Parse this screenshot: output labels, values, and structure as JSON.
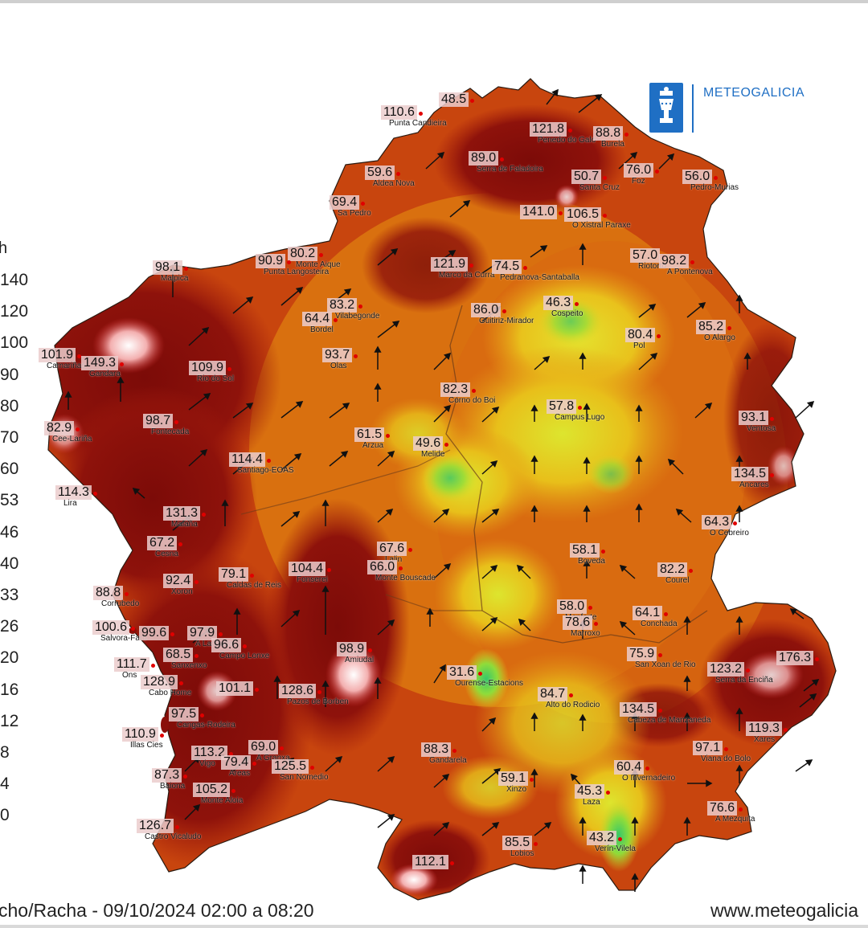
{
  "brand": {
    "name": "METEOGALICIA"
  },
  "legend": {
    "unit": "h",
    "ticks": [
      "140",
      "120",
      "100",
      "90",
      "80",
      "70",
      "60",
      "53",
      "46",
      "40",
      "33",
      "26",
      "20",
      "16",
      "12",
      "8",
      "4",
      "0"
    ]
  },
  "footer": {
    "caption": "cho/Racha - 09/10/2024 02:00 a 08:20",
    "website": "www.meteogalicia"
  },
  "colors": {
    "dark_red": "#8a0f0a",
    "red": "#b8250c",
    "orange": "#d9670f",
    "yellow": "#e9b618",
    "light_yellow": "#dedd2a",
    "green": "#5fd06a",
    "brand_blue": "#1f6fc4"
  },
  "stations": [
    {
      "value": "48.5",
      "name": ""
    },
    {
      "value": "110.6",
      "name": "Punta Candieira"
    },
    {
      "value": "121.8",
      "name": "Penedo do Galo"
    },
    {
      "value": "88.8",
      "name": "Burela"
    },
    {
      "value": "89.0",
      "name": "Serra de Faladoira"
    },
    {
      "value": "59.6",
      "name": "Aldea Nova"
    },
    {
      "value": "50.7",
      "name": "Santa Cruz"
    },
    {
      "value": "76.0",
      "name": "Foz"
    },
    {
      "value": "56.0",
      "name": "Pedro-Murias"
    },
    {
      "value": "69.4",
      "name": "Sa Pedro"
    },
    {
      "value": "141.0",
      "name": ""
    },
    {
      "value": "106.5",
      "name": "O Xistral Paraxe"
    },
    {
      "value": "80.2",
      "name": "Monte Aique"
    },
    {
      "value": "90.9",
      "name": "Punta Langosteira"
    },
    {
      "value": "98.1",
      "name": "Malpica"
    },
    {
      "value": "121.9",
      "name": "Marco da Curra"
    },
    {
      "value": "74.5",
      "name": "Pedranova-Santaballa"
    },
    {
      "value": "57.0",
      "name": "Riotorto"
    },
    {
      "value": "98.2",
      "name": "A Pontenova"
    },
    {
      "value": "83.2",
      "name": "Vilabegonde"
    },
    {
      "value": "64.4",
      "name": "Bordel"
    },
    {
      "value": "86.0",
      "name": "Guitiriz-Mirador"
    },
    {
      "value": "46.3",
      "name": "Cospeito"
    },
    {
      "value": "85.2",
      "name": "O Alargo"
    },
    {
      "value": "101.9",
      "name": "Camariñas"
    },
    {
      "value": "149.3",
      "name": "Gandara"
    },
    {
      "value": "109.9",
      "name": "Rio do Sol"
    },
    {
      "value": "93.7",
      "name": "Olas"
    },
    {
      "value": "80.4",
      "name": "Pol"
    },
    {
      "value": "82.3",
      "name": "Corno do Boi"
    },
    {
      "value": "57.8",
      "name": "Campus Lugo"
    },
    {
      "value": "98.7",
      "name": "Fontecada"
    },
    {
      "value": "82.9",
      "name": "Cee-Lariña"
    },
    {
      "value": "61.5",
      "name": "Arzua"
    },
    {
      "value": "49.6",
      "name": "Melide"
    },
    {
      "value": "93.1",
      "name": "Ventosa"
    },
    {
      "value": "114.4",
      "name": "Santiago-EOAS"
    },
    {
      "value": "134.5",
      "name": "Ancares"
    },
    {
      "value": "114.3",
      "name": "Lira"
    },
    {
      "value": "131.3",
      "name": "Malaña"
    },
    {
      "value": "64.3",
      "name": "O Cebreiro"
    },
    {
      "value": "67.2",
      "name": "Cesna"
    },
    {
      "value": "67.6",
      "name": "Lalin"
    },
    {
      "value": "58.1",
      "name": "Boveda"
    },
    {
      "value": "104.4",
      "name": "Fonserei"
    },
    {
      "value": "66.0",
      "name": "Monte Bouscade"
    },
    {
      "value": "79.1",
      "name": "Caldas de Reis"
    },
    {
      "value": "82.2",
      "name": "Courel"
    },
    {
      "value": "92.4",
      "name": "Xoron"
    },
    {
      "value": "88.8",
      "name": "Corrubedo"
    },
    {
      "value": "58.0",
      "name": "Monforte"
    },
    {
      "value": "78.6",
      "name": "Marroxo"
    },
    {
      "value": "64.1",
      "name": "Conchada"
    },
    {
      "value": "100.6",
      "name": "Salvora-Faro"
    },
    {
      "value": "99.6",
      "name": ""
    },
    {
      "value": "97.9",
      "name": "A Lanzada"
    },
    {
      "value": "96.6",
      "name": "Campo Lonxe"
    },
    {
      "value": "98.9",
      "name": "Amiudal"
    },
    {
      "value": "75.9",
      "name": "San Xoan de Rio"
    },
    {
      "value": "111.7",
      "name": "Ons"
    },
    {
      "value": "68.5",
      "name": "Sanxenxo"
    },
    {
      "value": "123.2",
      "name": "Serra da Enciña"
    },
    {
      "value": "176.3",
      "name": ""
    },
    {
      "value": "31.6",
      "name": "Ourense-Estacions"
    },
    {
      "value": "128.9",
      "name": "Cabo Home"
    },
    {
      "value": "101.1",
      "name": ""
    },
    {
      "value": "128.6",
      "name": "Pazos de Borben"
    },
    {
      "value": "84.7",
      "name": "Alto do Rodicio"
    },
    {
      "value": "134.5",
      "name": "Cabeza de Manzaneda"
    },
    {
      "value": "97.5",
      "name": "Cangas-Rodeira"
    },
    {
      "value": "119.3",
      "name": "Xares"
    },
    {
      "value": "110.9",
      "name": "Illas Cies"
    },
    {
      "value": "113.2",
      "name": "Vigo"
    },
    {
      "value": "69.0",
      "name": "A Granxa"
    },
    {
      "value": "79.4",
      "name": "Areas"
    },
    {
      "value": "88.3",
      "name": "Gandarela"
    },
    {
      "value": "97.1",
      "name": "Viana do Bolo"
    },
    {
      "value": "125.5",
      "name": "San Nomedio"
    },
    {
      "value": "60.4",
      "name": "O Invernadeiro"
    },
    {
      "value": "87.3",
      "name": "Baiona"
    },
    {
      "value": "59.1",
      "name": "Xinzo"
    },
    {
      "value": "45.3",
      "name": "Laza"
    },
    {
      "value": "105.2",
      "name": "Monte Aloia"
    },
    {
      "value": "76.6",
      "name": "A Mezquita"
    },
    {
      "value": "126.7",
      "name": "Castro Vicaludo"
    },
    {
      "value": "85.5",
      "name": "Lobios"
    },
    {
      "value": "43.2",
      "name": "Verín-Vilela"
    },
    {
      "value": "112.1",
      "name": ""
    }
  ]
}
